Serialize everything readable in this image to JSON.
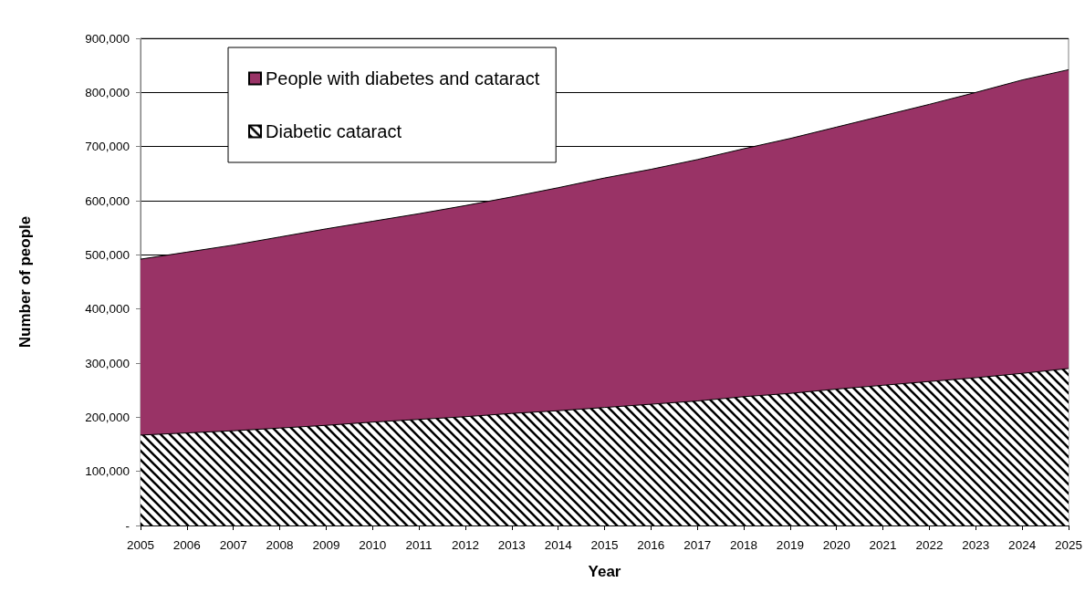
{
  "chart_data": {
    "type": "area",
    "xlabel": "Year",
    "ylabel": "Number of people",
    "categories": [
      "2005",
      "2006",
      "2007",
      "2008",
      "2009",
      "2010",
      "2011",
      "2012",
      "2013",
      "2014",
      "2015",
      "2016",
      "2017",
      "2018",
      "2019",
      "2020",
      "2021",
      "2022",
      "2023",
      "2024",
      "2025"
    ],
    "series": [
      {
        "name": "People with diabetes and cataract",
        "color": "#993366",
        "values": [
          492000,
          505000,
          518000,
          533000,
          548000,
          562000,
          576000,
          591000,
          607000,
          624000,
          642000,
          658000,
          676000,
          696000,
          715000,
          736000,
          757000,
          778000,
          800000,
          823000,
          842000
        ]
      },
      {
        "name": "Diabetic cataract",
        "color": "#000000",
        "values": [
          167000,
          171000,
          175000,
          180000,
          185000,
          191000,
          196000,
          201000,
          207000,
          212000,
          218000,
          224000,
          230000,
          238000,
          244000,
          252000,
          259000,
          266000,
          273000,
          281000,
          290000
        ]
      }
    ],
    "ylim": [
      0,
      900000
    ],
    "yticks": [
      {
        "value": 0,
        "label": "-"
      },
      {
        "value": 100000,
        "label": "100,000"
      },
      {
        "value": 200000,
        "label": "200,000"
      },
      {
        "value": 300000,
        "label": "300,000"
      },
      {
        "value": 400000,
        "label": "400,000"
      },
      {
        "value": 500000,
        "label": "500,000"
      },
      {
        "value": 600000,
        "label": "600,000"
      },
      {
        "value": 700000,
        "label": "700,000"
      },
      {
        "value": 800000,
        "label": "800,000"
      },
      {
        "value": 900000,
        "label": "900,000"
      }
    ],
    "grid": "y",
    "legend": "top left"
  }
}
